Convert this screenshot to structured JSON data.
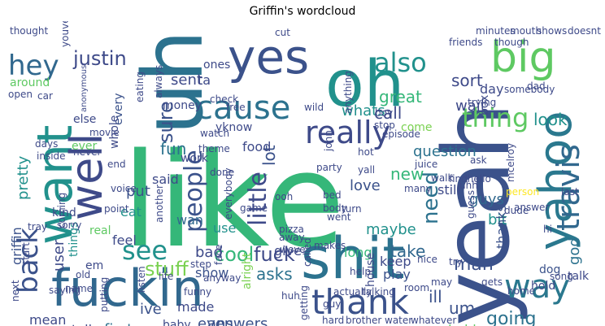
{
  "title": "Griffin's wordcloud",
  "palette": [
    "#440154",
    "#3b528b",
    "#21918c",
    "#5ec962",
    "#fde725"
  ],
  "words": [
    {
      "text": "like",
      "color": "#35b779"
    },
    {
      "text": "yeah",
      "color": "#3b528b"
    },
    {
      "text": "uh",
      "color": "#2c728e"
    },
    {
      "text": "oh",
      "color": "#21918c"
    },
    {
      "text": "fuckin",
      "color": "#31688e"
    },
    {
      "text": "shit",
      "color": "#2c728e"
    },
    {
      "text": "yes",
      "color": "#3b528b"
    },
    {
      "text": "want",
      "color": "#21918c"
    },
    {
      "text": "yahoo",
      "color": "#2a788e"
    },
    {
      "text": "well",
      "color": "#3e4a89"
    },
    {
      "text": "big",
      "color": "#5ec962"
    },
    {
      "text": "cause",
      "color": "#2c728e"
    },
    {
      "text": "thank",
      "color": "#3b528b"
    },
    {
      "text": "really",
      "color": "#3e4a89"
    },
    {
      "text": "travis",
      "color": "#31688e"
    },
    {
      "text": "people",
      "color": "#3b528b"
    },
    {
      "text": "little",
      "color": "#3e4a89"
    },
    {
      "text": "hey",
      "color": "#31688e"
    },
    {
      "text": "also",
      "color": "#21918c"
    },
    {
      "text": "back",
      "color": "#3b528b"
    },
    {
      "text": "way",
      "color": "#2a788e"
    },
    {
      "text": "thing",
      "color": "#5ec962"
    },
    {
      "text": "see",
      "color": "#21918c"
    },
    {
      "text": "cool",
      "color": "#35b779"
    },
    {
      "text": "fuck",
      "color": "#3e4a89"
    },
    {
      "text": "stuff",
      "color": "#7ad151"
    },
    {
      "text": "need",
      "color": "#2c728e"
    },
    {
      "text": "man",
      "color": "#3b528b"
    },
    {
      "text": "going",
      "color": "#2c728e"
    },
    {
      "text": "justin",
      "color": "#3e4a89"
    },
    {
      "text": "sure",
      "color": "#3b528b"
    },
    {
      "text": "griffin",
      "color": "#3b528b"
    },
    {
      "text": "great",
      "color": "#35b779"
    },
    {
      "text": "sort",
      "color": "#3e4a89"
    },
    {
      "text": "fun",
      "color": "#2c728e"
    },
    {
      "text": "whats",
      "color": "#21918c"
    },
    {
      "text": "look",
      "color": "#21918c"
    },
    {
      "text": "question",
      "color": "#2c728e"
    },
    {
      "text": "lot",
      "color": "#3b528b"
    },
    {
      "text": "pretty",
      "color": "#21918c"
    },
    {
      "text": "new",
      "color": "#35b779"
    },
    {
      "text": "love",
      "color": "#3b528b"
    },
    {
      "text": "wait",
      "color": "#3e4a89"
    },
    {
      "text": "maybe",
      "color": "#21918c"
    },
    {
      "text": "take",
      "color": "#31688e"
    },
    {
      "text": "call",
      "color": "#3e4a89"
    },
    {
      "text": "user",
      "color": "#3e4a89"
    },
    {
      "text": "god",
      "color": "#2c728e"
    },
    {
      "text": "ill",
      "color": "#3b528b"
    },
    {
      "text": "um",
      "color": "#3b528b"
    },
    {
      "text": "mean",
      "color": "#3e4a89"
    },
    {
      "text": "tell",
      "color": "#3e4a89"
    },
    {
      "text": "first",
      "color": "#2c728e"
    },
    {
      "text": "answers",
      "color": "#3b528b"
    },
    {
      "text": "even",
      "color": "#3b528b"
    },
    {
      "text": "sent",
      "color": "#3e4a89"
    },
    {
      "text": "put",
      "color": "#3b528b"
    },
    {
      "text": "eat",
      "color": "#21918c"
    },
    {
      "text": "bad",
      "color": "#3e4a89"
    },
    {
      "text": "use",
      "color": "#21918c"
    },
    {
      "text": "feel",
      "color": "#3e4a89"
    },
    {
      "text": "kind",
      "color": "#3e4a89"
    },
    {
      "text": "ive",
      "color": "#3b528b"
    },
    {
      "text": "made",
      "color": "#3e4a89"
    },
    {
      "text": "show",
      "color": "#3b528b"
    },
    {
      "text": "asks",
      "color": "#2c728e"
    },
    {
      "text": "guys",
      "color": "#31688e"
    },
    {
      "text": "bit",
      "color": "#21918c"
    },
    {
      "text": "thanks",
      "color": "#3b528b"
    },
    {
      "text": "play",
      "color": "#3b528b"
    },
    {
      "text": "hold",
      "color": "#3e4a89"
    },
    {
      "text": "dog",
      "color": "#3b528b"
    },
    {
      "text": "keep",
      "color": "#3e4a89"
    },
    {
      "text": "long",
      "color": "#35b779"
    },
    {
      "text": "give",
      "color": "#3e4a89"
    },
    {
      "text": "still",
      "color": "#3e4a89"
    },
    {
      "text": "wan",
      "color": "#31688e"
    },
    {
      "text": "day",
      "color": "#3e4a89"
    },
    {
      "text": "probably",
      "color": "#5ec962"
    },
    {
      "text": "ta",
      "color": "#3e4a89"
    },
    {
      "text": "food",
      "color": "#3e4a89"
    },
    {
      "text": "every",
      "color": "#3b528b"
    },
    {
      "text": "said",
      "color": "#3e4a89"
    },
    {
      "text": "work",
      "color": "#3e4a89"
    },
    {
      "text": "ones",
      "color": "#3e4a89"
    },
    {
      "text": "money",
      "color": "#3e4a89"
    },
    {
      "text": "yknow",
      "color": "#3e4a89"
    },
    {
      "text": "whole",
      "color": "#3e4a89"
    },
    {
      "text": "else",
      "color": "#3e4a89"
    },
    {
      "text": "around",
      "color": "#5ec962"
    },
    {
      "text": "come",
      "color": "#7ad151"
    },
    {
      "text": "things",
      "color": "#21918c"
    },
    {
      "text": "em",
      "color": "#3e4a89"
    },
    {
      "text": "next",
      "color": "#3e4a89"
    },
    {
      "text": "start",
      "color": "#3e4a89"
    },
    {
      "text": "saying",
      "color": "#3e4a89"
    },
    {
      "text": "name",
      "color": "#3e4a89"
    },
    {
      "text": "baby",
      "color": "#3e4a89"
    },
    {
      "text": "house",
      "color": "#3e4a89"
    },
    {
      "text": "real",
      "color": "#5ec962"
    },
    {
      "text": "ever",
      "color": "#5ec962"
    },
    {
      "text": "another",
      "color": "#3e4a89"
    },
    {
      "text": "everybody",
      "color": "#3e4a89"
    },
    {
      "text": "alright",
      "color": "#7ad151"
    },
    {
      "text": "box",
      "color": "#3e4a89"
    },
    {
      "text": "mcelroy",
      "color": "#3e4a89"
    },
    {
      "text": "guess",
      "color": "#3e4a89"
    },
    {
      "text": "nice",
      "color": "#3e4a89"
    },
    {
      "text": "dude",
      "color": "#3e4a89"
    },
    {
      "text": "answer",
      "color": "#3e4a89"
    },
    {
      "text": "person",
      "color": "#fde725"
    },
    {
      "text": "last",
      "color": "#3e4a89"
    },
    {
      "text": "hi",
      "color": "#3e4a89"
    },
    {
      "text": "song",
      "color": "#3e4a89"
    },
    {
      "text": "talk",
      "color": "#3e4a89"
    },
    {
      "text": "home",
      "color": "#3e4a89"
    },
    {
      "text": "hard",
      "color": "#3e4a89"
    },
    {
      "text": "brother",
      "color": "#3e4a89"
    },
    {
      "text": "water",
      "color": "#3e4a89"
    },
    {
      "text": "whatever",
      "color": "#3e4a89"
    },
    {
      "text": "thought",
      "color": "#3e4a89"
    },
    {
      "text": "minutes",
      "color": "#3e4a89"
    },
    {
      "text": "mouth",
      "color": "#3e4a89"
    },
    {
      "text": "shows",
      "color": "#3e4a89"
    },
    {
      "text": "doesnt",
      "color": "#3e4a89"
    },
    {
      "text": "cut",
      "color": "#3e4a89"
    },
    {
      "text": "friends",
      "color": "#3e4a89"
    },
    {
      "text": "though",
      "color": "#3e4a89"
    },
    {
      "text": "youve",
      "color": "#3e4a89"
    },
    {
      "text": "open",
      "color": "#3e4a89"
    },
    {
      "text": "car",
      "color": "#3e4a89"
    },
    {
      "text": "eating",
      "color": "#3e4a89"
    },
    {
      "text": "always",
      "color": "#3e4a89"
    },
    {
      "text": "check",
      "color": "#3e4a89"
    },
    {
      "text": "anonymous",
      "color": "#3e4a89"
    },
    {
      "text": "trying",
      "color": "#3e4a89"
    },
    {
      "text": "somebody",
      "color": "#3e4a89"
    },
    {
      "text": "dad",
      "color": "#3e4a89"
    },
    {
      "text": "wild",
      "color": "#3e4a89"
    },
    {
      "text": "anything",
      "color": "#3e4a89"
    },
    {
      "text": "stop",
      "color": "#3e4a89"
    },
    {
      "text": "boy",
      "color": "#3e4a89"
    },
    {
      "text": "episode",
      "color": "#3e4a89"
    },
    {
      "text": "movie",
      "color": "#3e4a89"
    },
    {
      "text": "theme",
      "color": "#3e4a89"
    },
    {
      "text": "watch",
      "color": "#3e4a89"
    },
    {
      "text": "hot",
      "color": "#3e4a89"
    },
    {
      "text": "yall",
      "color": "#3e4a89"
    },
    {
      "text": "party",
      "color": "#3e4a89"
    },
    {
      "text": "juice",
      "color": "#3e4a89"
    },
    {
      "text": "walk",
      "color": "#3e4a89"
    },
    {
      "text": "ask",
      "color": "#3e4a89"
    },
    {
      "text": "days",
      "color": "#3e4a89"
    },
    {
      "text": "inside",
      "color": "#3e4a89"
    },
    {
      "text": "end",
      "color": "#3e4a89"
    },
    {
      "text": "done",
      "color": "#3e4a89"
    },
    {
      "text": "free",
      "color": "#3e4a89"
    },
    {
      "text": "game",
      "color": "#3e4a89"
    },
    {
      "text": "bed",
      "color": "#3e4a89"
    },
    {
      "text": "body",
      "color": "#3e4a89"
    },
    {
      "text": "many",
      "color": "#3e4a89"
    },
    {
      "text": "findhello",
      "color": "#3e4a89"
    },
    {
      "text": "uhh",
      "color": "#3e4a89"
    },
    {
      "text": "voice",
      "color": "#3e4a89"
    },
    {
      "text": "point",
      "color": "#3e4a89"
    },
    {
      "text": "tray",
      "color": "#3e4a89"
    },
    {
      "text": "coming",
      "color": "#3e4a89"
    },
    {
      "text": "face",
      "color": "#3e4a89"
    },
    {
      "text": "step",
      "color": "#3e4a89"
    },
    {
      "text": "away",
      "color": "#3e4a89"
    },
    {
      "text": "pizza",
      "color": "#3e4a89"
    },
    {
      "text": "went",
      "color": "#3e4a89"
    },
    {
      "text": "turn",
      "color": "#3e4a89"
    },
    {
      "text": "makes",
      "color": "#3e4a89"
    },
    {
      "text": "weve",
      "color": "#3e4a89"
    },
    {
      "text": "called",
      "color": "#3e4a89"
    },
    {
      "text": "help",
      "color": "#3e4a89"
    },
    {
      "text": "try",
      "color": "#3e4a89"
    },
    {
      "text": "old",
      "color": "#3e4a89"
    },
    {
      "text": "life",
      "color": "#3e4a89"
    },
    {
      "text": "funny",
      "color": "#3e4a89"
    },
    {
      "text": "listen",
      "color": "#3e4a89"
    },
    {
      "text": "huh",
      "color": "#3e4a89"
    },
    {
      "text": "guy",
      "color": "#3e4a89"
    },
    {
      "text": "getting",
      "color": "#3e4a89"
    },
    {
      "text": "actually",
      "color": "#3e4a89"
    },
    {
      "text": "talking",
      "color": "#3e4a89"
    },
    {
      "text": "room",
      "color": "#3e4a89"
    },
    {
      "text": "may",
      "color": "#3e4a89"
    },
    {
      "text": "gets",
      "color": "#3e4a89"
    },
    {
      "text": "better",
      "color": "#3e4a89"
    },
    {
      "text": "anyway",
      "color": "#3e4a89"
    },
    {
      "text": "never",
      "color": "#3e4a89"
    },
    {
      "text": "sorry",
      "color": "#3e4a89"
    },
    {
      "text": "ooh",
      "color": "#3e4a89"
    },
    {
      "text": "john",
      "color": "#3e4a89"
    },
    {
      "text": "putting",
      "color": "#3e4a89"
    }
  ]
}
